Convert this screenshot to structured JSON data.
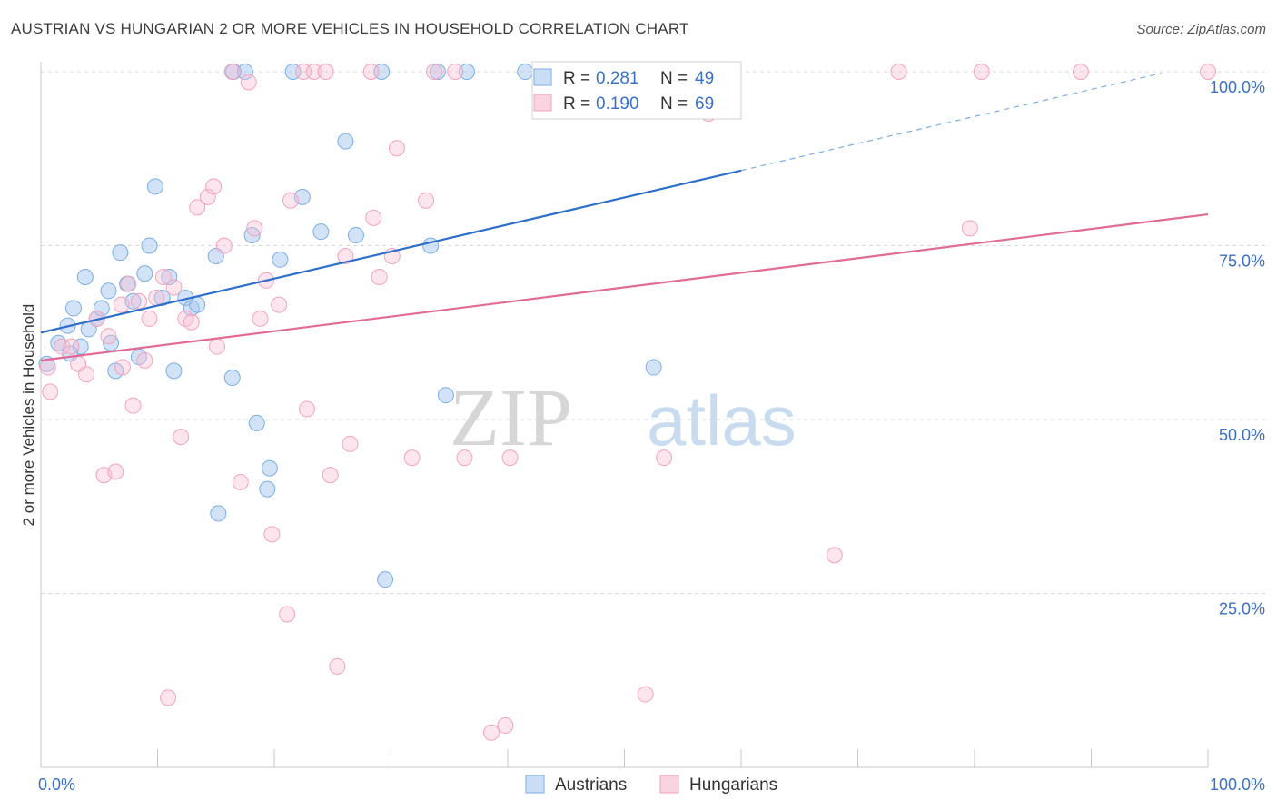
{
  "title": "AUSTRIAN VS HUNGARIAN 2 OR MORE VEHICLES IN HOUSEHOLD CORRELATION CHART",
  "source": "Source: ZipAtlas.com",
  "watermark": {
    "zip": "ZIP",
    "atlas": "atlas"
  },
  "colors": {
    "austrians": "#7aaee6",
    "austrians_line": "#2f6fcc",
    "hungarians": "#f2a3bd",
    "hungarians_line": "#e06b96",
    "value_text": "#3a70c8",
    "grid": "#d8d8d8"
  },
  "legend_top": [
    {
      "r_label": "R =",
      "r_value": "0.281",
      "n_label": "N =",
      "n_value": "49"
    },
    {
      "r_label": "R =",
      "r_value": "0.190",
      "n_label": "N =",
      "n_value": "69"
    }
  ],
  "chart_data": {
    "type": "scatter",
    "ylabel": "2 or more Vehicles in Household",
    "xlim": [
      0,
      100
    ],
    "ylim": [
      0,
      100
    ],
    "x_tick_labels": [
      "0.0%",
      "100.0%"
    ],
    "y_tick_labels": [
      "25.0%",
      "50.0%",
      "75.0%",
      "100.0%"
    ],
    "y_ticks": [
      25,
      50,
      75,
      100
    ],
    "grid": true,
    "legend_position": "bottom",
    "series": [
      {
        "name": "Austrians",
        "trend": {
          "x0": 0,
          "y0": 62.5,
          "x1": 60,
          "y1": 85.8,
          "dash_to_x": 96
        },
        "points": [
          [
            0.5,
            58
          ],
          [
            1.5,
            61
          ],
          [
            2.3,
            63.5
          ],
          [
            2.8,
            66
          ],
          [
            3.4,
            60.5
          ],
          [
            3.8,
            70.5
          ],
          [
            4.1,
            63
          ],
          [
            4.8,
            64.5
          ],
          [
            5.2,
            66
          ],
          [
            5.8,
            68.5
          ],
          [
            6.4,
            57
          ],
          [
            6.8,
            74
          ],
          [
            7.4,
            69.5
          ],
          [
            7.9,
            67
          ],
          [
            8.4,
            59
          ],
          [
            8.9,
            71
          ],
          [
            9.3,
            75
          ],
          [
            9.8,
            83.5
          ],
          [
            10.4,
            67.5
          ],
          [
            11,
            70.5
          ],
          [
            11.4,
            57
          ],
          [
            12.4,
            67.5
          ],
          [
            12.9,
            66
          ],
          [
            13.4,
            66.5
          ],
          [
            15,
            73.5
          ],
          [
            16.4,
            56
          ],
          [
            16.5,
            100
          ],
          [
            17.5,
            100
          ],
          [
            18.1,
            76.5
          ],
          [
            18.5,
            49.5
          ],
          [
            19.4,
            40
          ],
          [
            19.6,
            43
          ],
          [
            20.5,
            73
          ],
          [
            21.6,
            100
          ],
          [
            22.4,
            82
          ],
          [
            24,
            77
          ],
          [
            26.1,
            90
          ],
          [
            27,
            76.5
          ],
          [
            29.2,
            100
          ],
          [
            29.5,
            27
          ],
          [
            33.4,
            75
          ],
          [
            34,
            100
          ],
          [
            34.7,
            53.5
          ],
          [
            36.5,
            100
          ],
          [
            41.5,
            100
          ],
          [
            52.5,
            57.5
          ],
          [
            15.2,
            36.5
          ],
          [
            6,
            61
          ],
          [
            2.5,
            59.5
          ]
        ]
      },
      {
        "name": "Hungarians",
        "trend": {
          "x0": 0,
          "y0": 58.5,
          "x1": 100,
          "y1": 79.5
        },
        "points": [
          [
            0.6,
            57.5
          ],
          [
            0.8,
            54
          ],
          [
            1.8,
            60.5
          ],
          [
            2.6,
            60.5
          ],
          [
            3.2,
            58
          ],
          [
            3.9,
            56.5
          ],
          [
            4.8,
            64.5
          ],
          [
            5.4,
            42
          ],
          [
            5.8,
            62
          ],
          [
            6.4,
            42.5
          ],
          [
            6.9,
            66.5
          ],
          [
            7.5,
            69.5
          ],
          [
            7.9,
            52
          ],
          [
            8.4,
            67
          ],
          [
            8.9,
            58.5
          ],
          [
            9.3,
            64.5
          ],
          [
            9.9,
            67.5
          ],
          [
            10.5,
            70.5
          ],
          [
            10.9,
            10
          ],
          [
            11.4,
            69
          ],
          [
            12,
            47.5
          ],
          [
            12.4,
            64.5
          ],
          [
            12.9,
            64
          ],
          [
            13.4,
            80.5
          ],
          [
            14.3,
            82
          ],
          [
            14.8,
            83.5
          ],
          [
            15.1,
            60.5
          ],
          [
            15.7,
            75
          ],
          [
            16.4,
            100
          ],
          [
            17.1,
            41
          ],
          [
            17.8,
            98.5
          ],
          [
            18.3,
            77.5
          ],
          [
            18.8,
            64.5
          ],
          [
            19.3,
            70
          ],
          [
            19.8,
            33.5
          ],
          [
            20.4,
            66.5
          ],
          [
            21.1,
            22
          ],
          [
            21.4,
            81.5
          ],
          [
            22.5,
            100
          ],
          [
            22.8,
            51.5
          ],
          [
            23.4,
            100
          ],
          [
            24.4,
            100
          ],
          [
            24.8,
            42
          ],
          [
            25.4,
            14.5
          ],
          [
            26.1,
            73.5
          ],
          [
            26.5,
            46.5
          ],
          [
            28.3,
            100
          ],
          [
            28.5,
            79
          ],
          [
            29,
            70.5
          ],
          [
            30.1,
            73.5
          ],
          [
            30.5,
            89
          ],
          [
            31.8,
            44.5
          ],
          [
            33,
            81.5
          ],
          [
            33.7,
            100
          ],
          [
            35.5,
            100
          ],
          [
            36.3,
            44.5
          ],
          [
            38.6,
            5
          ],
          [
            39.8,
            6
          ],
          [
            40.2,
            44.5
          ],
          [
            51.8,
            10.5
          ],
          [
            53.4,
            44.5
          ],
          [
            57.2,
            94
          ],
          [
            68,
            30.5
          ],
          [
            73.5,
            100
          ],
          [
            80.6,
            100
          ],
          [
            79.6,
            77.5
          ],
          [
            89.1,
            100
          ],
          [
            100,
            100
          ],
          [
            7,
            57.5
          ]
        ]
      }
    ]
  }
}
